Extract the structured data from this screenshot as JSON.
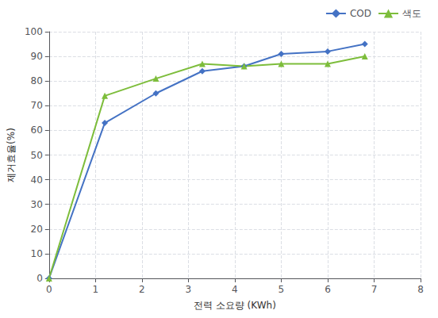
{
  "chart_data": {
    "type": "line",
    "xlabel": "전력 소요량 (KWh)",
    "ylabel": "제거효율(%)",
    "x": [
      0,
      1.2,
      2.3,
      3.3,
      4.2,
      5.0,
      6.0,
      6.8
    ],
    "series": [
      {
        "name": "COD",
        "color": "#4472C4",
        "marker": "diamond",
        "values": [
          0,
          63,
          75,
          84,
          86,
          91,
          92,
          95
        ]
      },
      {
        "name": "색도",
        "color": "#7DBD3B",
        "marker": "triangle",
        "values": [
          0,
          74,
          81,
          87,
          86,
          87,
          87,
          90
        ]
      }
    ],
    "xlim": [
      0,
      8
    ],
    "ylim": [
      0,
      100
    ],
    "xticks": [
      0,
      1,
      2,
      3,
      4,
      5,
      6,
      7,
      8
    ],
    "yticks": [
      0,
      10,
      20,
      30,
      40,
      50,
      60,
      70,
      80,
      90,
      100
    ],
    "grid": true,
    "legend": "upper right"
  }
}
